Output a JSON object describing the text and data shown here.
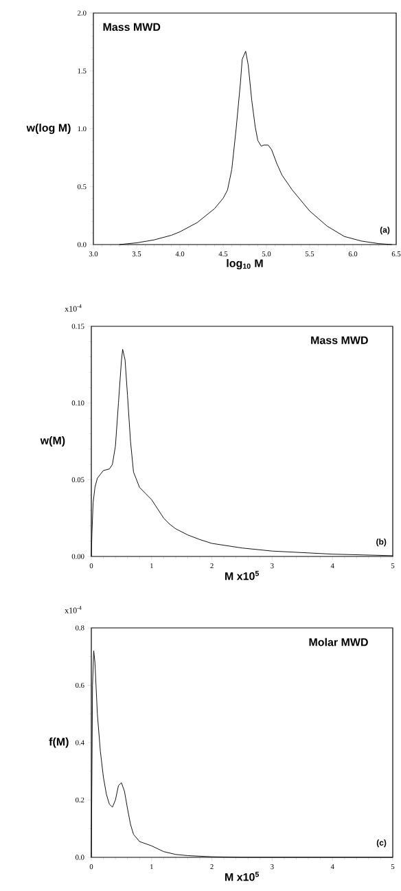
{
  "chart_data": [
    {
      "type": "line",
      "title": "Mass MWD",
      "xlabel": "log$_{10}$ M",
      "ylabel": "w(log M)",
      "annotations": [
        "(a)"
      ],
      "color": "#000000",
      "x": [
        3.3,
        3.5,
        3.7,
        3.9,
        4.0,
        4.2,
        4.4,
        4.5,
        4.55,
        4.6,
        4.65,
        4.7,
        4.72,
        4.76,
        4.79,
        4.83,
        4.87,
        4.9,
        4.94,
        4.97,
        5.02,
        5.06,
        5.12,
        5.18,
        5.3,
        5.5,
        5.7,
        5.9,
        6.1,
        6.3,
        6.45
      ],
      "values": [
        0,
        0.015,
        0.04,
        0.08,
        0.11,
        0.19,
        0.31,
        0.4,
        0.47,
        0.65,
        1.0,
        1.4,
        1.6,
        1.67,
        1.55,
        1.25,
        1.02,
        0.9,
        0.85,
        0.86,
        0.86,
        0.82,
        0.7,
        0.6,
        0.47,
        0.29,
        0.16,
        0.07,
        0.03,
        0.008,
        0
      ],
      "xlim": [
        3.0,
        6.5
      ],
      "ylim": [
        0,
        2.0
      ],
      "xticks": [
        {
          "value": 3,
          "label": "3.0"
        },
        3.5,
        {
          "value": 4,
          "label": "4.0"
        },
        4.5,
        {
          "value": 5,
          "label": "5.0"
        },
        5.5,
        {
          "value": 6,
          "label": "6.0"
        },
        6.5
      ],
      "yticks": [
        {
          "value": 0,
          "label": "0.0"
        },
        0.5,
        {
          "value": 1,
          "label": "1.0"
        },
        1.5,
        {
          "value": 2,
          "label": "2.0"
        }
      ]
    },
    {
      "type": "line",
      "title": "Mass MWD",
      "xlabel": "M x10$^{5}$",
      "ylabel": "w(M)",
      "annotations": [
        "(b)",
        "x10$^{-4}$"
      ],
      "color": "#000000",
      "x": [
        0,
        0.01,
        0.03,
        0.06,
        0.1,
        0.2,
        0.3,
        0.35,
        0.4,
        0.45,
        0.5,
        0.52,
        0.56,
        0.6,
        0.65,
        0.7,
        0.8,
        0.9,
        1.0,
        1.1,
        1.2,
        1.3,
        1.4,
        1.6,
        1.8,
        2.0,
        2.5,
        3.0,
        3.5,
        4.0,
        4.5,
        5.0
      ],
      "values": [
        0,
        0.015,
        0.035,
        0.045,
        0.051,
        0.056,
        0.057,
        0.06,
        0.072,
        0.1,
        0.128,
        0.135,
        0.128,
        0.105,
        0.075,
        0.055,
        0.045,
        0.041,
        0.037,
        0.031,
        0.025,
        0.021,
        0.018,
        0.014,
        0.011,
        0.0085,
        0.0055,
        0.0035,
        0.0025,
        0.0015,
        0.001,
        0.0005
      ],
      "xlim": [
        0,
        5
      ],
      "ylim": [
        0,
        0.15
      ],
      "xticks": [
        0,
        1,
        2,
        3,
        4,
        5
      ],
      "yticks": [
        {
          "value": 0,
          "label": "0.00"
        },
        0.05,
        {
          "value": 0.1,
          "label": "0.10"
        },
        0.15
      ]
    },
    {
      "type": "line",
      "title": "Molar MWD",
      "xlabel": "M x10$^{5}$",
      "ylabel": "f(M)",
      "annotations": [
        "(c)",
        "x10$^{-4}$"
      ],
      "color": "#000000",
      "x": [
        0,
        0.01,
        0.02,
        0.04,
        0.06,
        0.1,
        0.15,
        0.2,
        0.25,
        0.3,
        0.35,
        0.4,
        0.45,
        0.5,
        0.55,
        0.6,
        0.65,
        0.7,
        0.8,
        1.0,
        1.2,
        1.4,
        1.6,
        2.0,
        2.5,
        3.0,
        5.0
      ],
      "values": [
        0,
        0.3,
        0.6,
        0.72,
        0.68,
        0.5,
        0.37,
        0.28,
        0.22,
        0.185,
        0.175,
        0.2,
        0.25,
        0.26,
        0.23,
        0.17,
        0.115,
        0.08,
        0.055,
        0.04,
        0.02,
        0.01,
        0.006,
        0.002,
        0,
        0,
        0
      ],
      "xlim": [
        0,
        5
      ],
      "ylim": [
        0,
        0.8
      ],
      "xticks": [
        0,
        1,
        2,
        3,
        4,
        5
      ],
      "yticks": [
        {
          "value": 0,
          "label": "0.0"
        },
        0.2,
        0.4,
        0.6,
        0.8
      ]
    }
  ]
}
